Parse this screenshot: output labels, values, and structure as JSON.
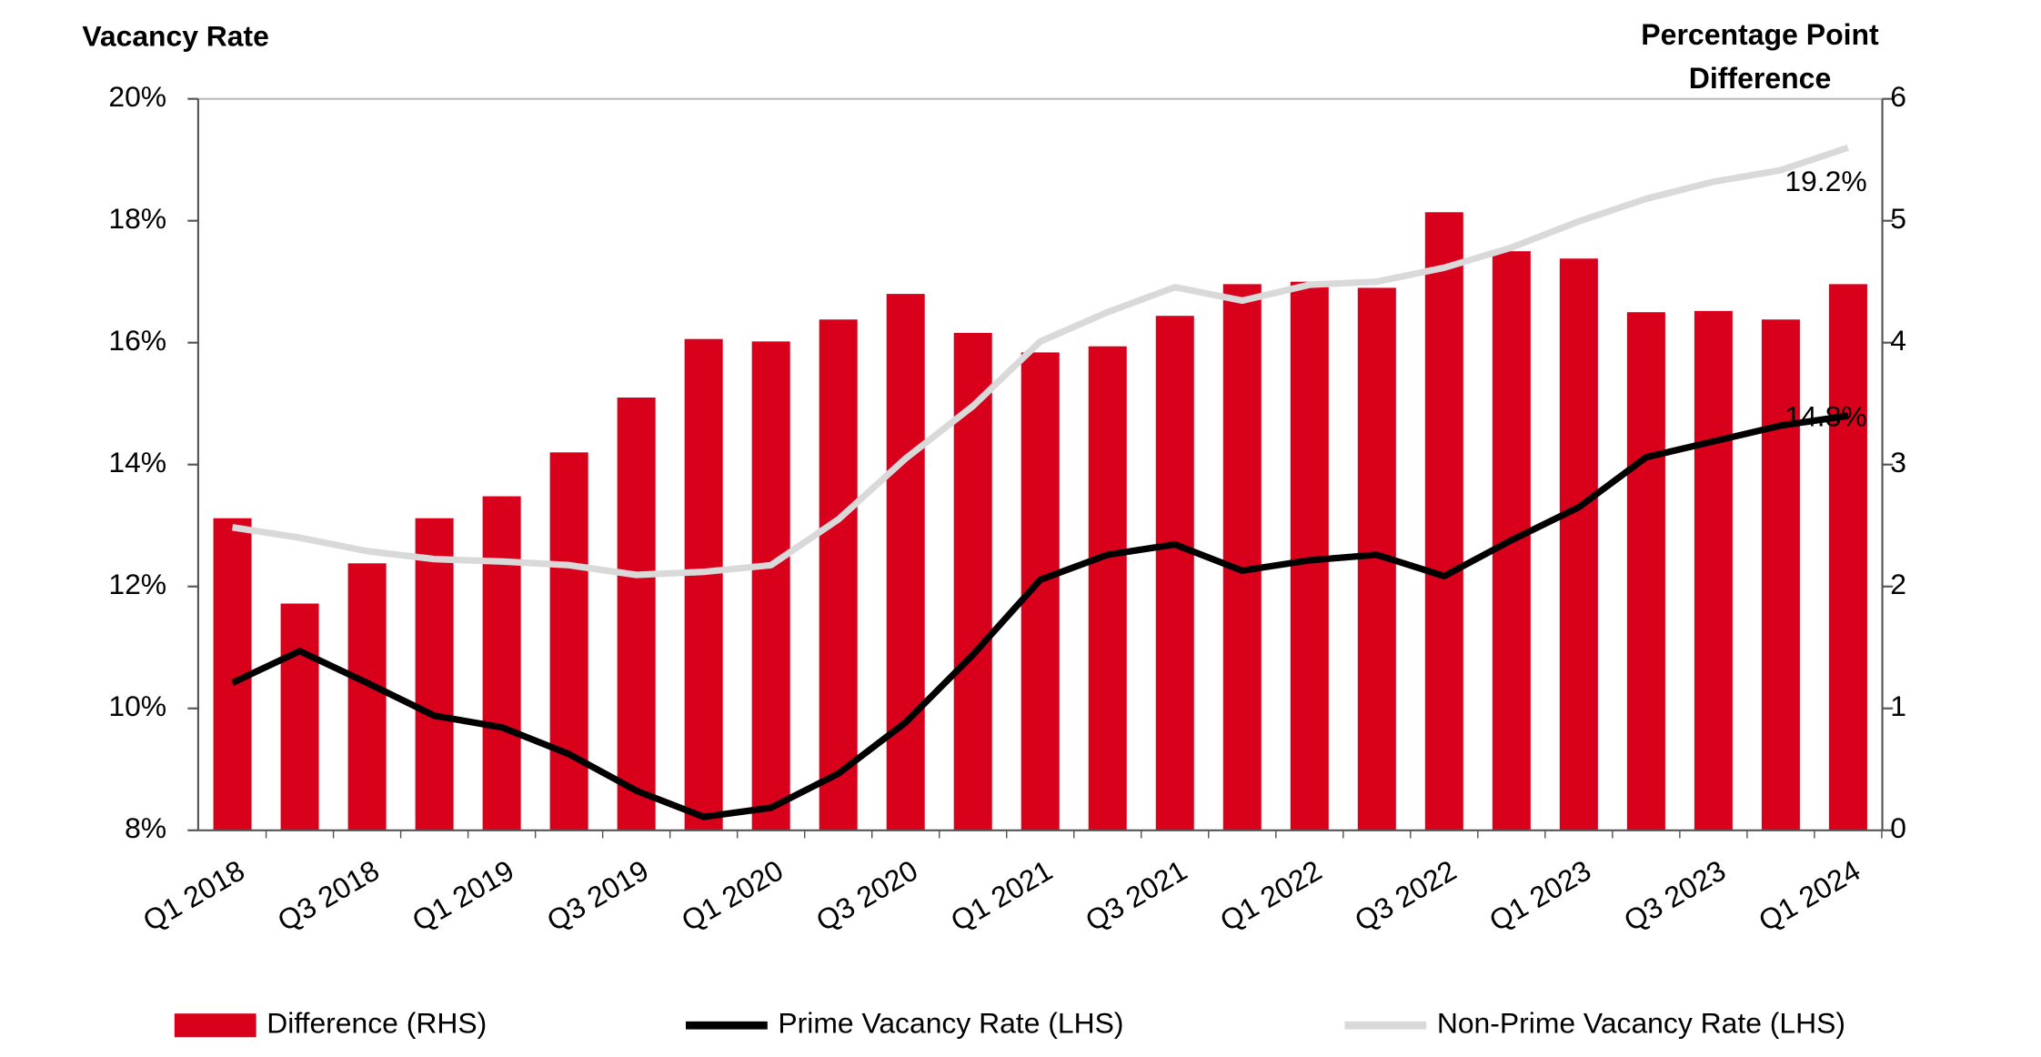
{
  "chart_data": {
    "type": "bar",
    "y_label": "Vacancy Rate",
    "y2_label": "Percentage Point Difference",
    "categories": [
      "Q1 2018",
      null,
      "Q3 2018",
      null,
      "Q1 2019",
      null,
      "Q3 2019",
      null,
      "Q1 2020",
      null,
      "Q3 2020",
      null,
      "Q1 2021",
      null,
      "Q3 2021",
      null,
      "Q1 2022",
      null,
      "Q3 2022",
      null,
      "Q1 2023",
      null,
      "Q3 2023",
      null,
      "Q1 2024"
    ],
    "series": [
      {
        "name": "Difference (RHS)",
        "type": "bar",
        "axis": "y2",
        "color": "#d9001b",
        "values": [
          2.56,
          1.86,
          2.19,
          2.56,
          2.74,
          3.1,
          3.55,
          4.03,
          4.01,
          4.19,
          4.4,
          4.08,
          3.92,
          3.97,
          4.22,
          4.48,
          4.5,
          4.45,
          5.07,
          4.75,
          4.69,
          4.25,
          4.26,
          4.19,
          4.48
        ]
      },
      {
        "name": "Prime Vacancy Rate (LHS)",
        "type": "line",
        "axis": "y",
        "color": "#000000",
        "values": [
          10.42,
          10.94,
          10.42,
          9.88,
          9.69,
          9.25,
          8.65,
          8.22,
          8.37,
          8.93,
          9.77,
          10.88,
          12.11,
          12.52,
          12.69,
          12.26,
          12.43,
          12.52,
          12.17,
          12.76,
          13.3,
          14.12,
          14.38,
          14.64,
          14.8
        ],
        "value_labels": [
          null,
          null,
          null,
          null,
          null,
          null,
          null,
          null,
          null,
          null,
          null,
          null,
          null,
          null,
          null,
          null,
          null,
          null,
          null,
          null,
          null,
          null,
          null,
          null,
          "14.8%"
        ]
      },
      {
        "name": "Non-Prime Vacancy Rate (LHS)",
        "type": "line",
        "axis": "y",
        "color": "#d9d9d9",
        "values": [
          12.97,
          12.8,
          12.58,
          12.45,
          12.41,
          12.35,
          12.19,
          12.24,
          12.35,
          13.1,
          14.1,
          14.96,
          16.02,
          16.5,
          16.91,
          16.69,
          16.95,
          17.0,
          17.23,
          17.56,
          17.99,
          18.36,
          18.64,
          18.83,
          19.2
        ],
        "value_labels": [
          null,
          null,
          null,
          null,
          null,
          null,
          null,
          null,
          null,
          null,
          null,
          null,
          null,
          null,
          null,
          null,
          null,
          null,
          null,
          null,
          null,
          null,
          null,
          null,
          "19.2%"
        ]
      }
    ],
    "ylim": [
      8,
      20
    ],
    "yticks": [
      {
        "value": 8,
        "label": "8%"
      },
      {
        "value": 10,
        "label": "10%"
      },
      {
        "value": 12,
        "label": "12%"
      },
      {
        "value": 14,
        "label": "14%"
      },
      {
        "value": 16,
        "label": "16%"
      },
      {
        "value": 18,
        "label": "18%"
      },
      {
        "value": 20,
        "label": "20%"
      }
    ],
    "y2lim": [
      0,
      6
    ],
    "y2ticks": [
      0,
      1,
      2,
      3,
      4,
      5,
      6
    ],
    "grid": false,
    "legend": "bottom"
  }
}
